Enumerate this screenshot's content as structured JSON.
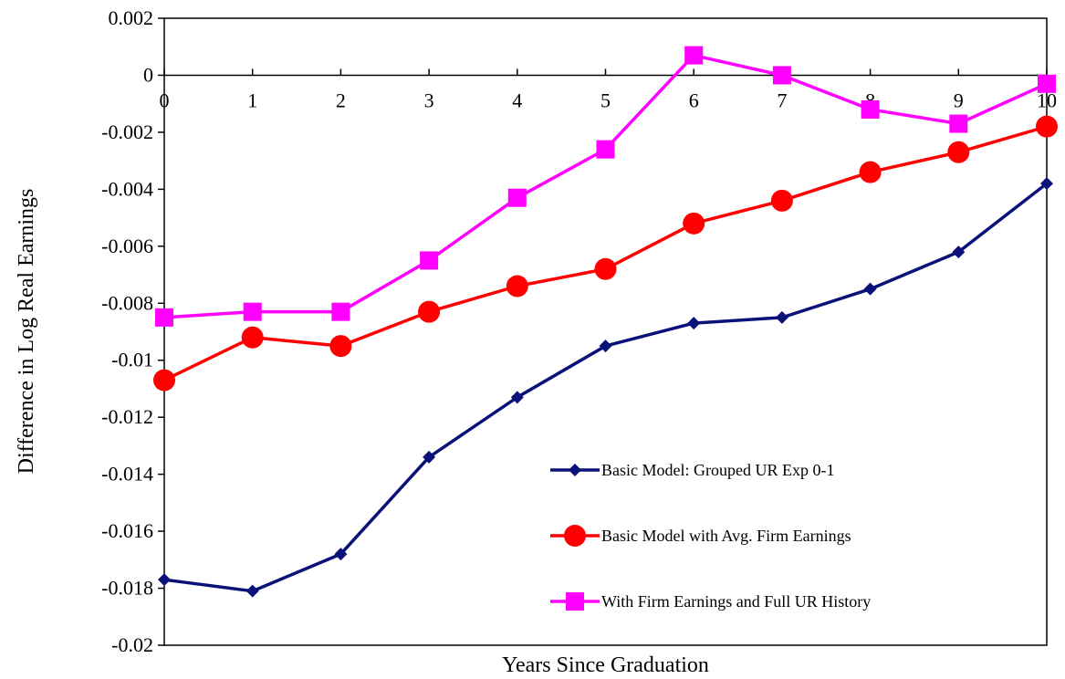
{
  "chart_data": {
    "type": "line",
    "title": "",
    "xlabel": "Years Since Graduation",
    "ylabel": "Difference in Log Real Earnings",
    "xlim": [
      0,
      10
    ],
    "ylim": [
      -0.02,
      0.002
    ],
    "x": [
      0,
      1,
      2,
      3,
      4,
      5,
      6,
      7,
      8,
      9,
      10
    ],
    "x_tick_labels": [
      "0",
      "1",
      "2",
      "3",
      "4",
      "5",
      "6",
      "7",
      "8",
      "9",
      "10"
    ],
    "y_ticks": [
      0.002,
      0,
      -0.002,
      -0.004,
      -0.006,
      -0.008,
      -0.01,
      -0.012,
      -0.014,
      -0.016,
      -0.018,
      -0.02
    ],
    "y_tick_labels": [
      "0.002",
      "0",
      "-0.002",
      "-0.004",
      "-0.006",
      "-0.008",
      "-0.01",
      "-0.012",
      "-0.014",
      "-0.016",
      "-0.018",
      "-0.02"
    ],
    "grid": false,
    "legend_position": "lower-right",
    "series": [
      {
        "name": "Basic Model: Grouped UR Exp 0-1",
        "color": "#0a127a",
        "marker": "diamond",
        "values": [
          -0.0177,
          -0.0181,
          -0.0168,
          -0.0134,
          -0.0113,
          -0.0095,
          -0.0087,
          -0.0085,
          -0.0075,
          -0.0062,
          -0.0038
        ]
      },
      {
        "name": "Basic Model with Avg. Firm Earnings",
        "color": "#ff0000",
        "marker": "circle",
        "values": [
          -0.0107,
          -0.0092,
          -0.0095,
          -0.0083,
          -0.0074,
          -0.0068,
          -0.0052,
          -0.0044,
          -0.0034,
          -0.0027,
          -0.0018
        ]
      },
      {
        "name": "With Firm Earnings and Full UR History",
        "color": "#ff00ff",
        "marker": "square",
        "values": [
          -0.0085,
          -0.0083,
          -0.0083,
          -0.0065,
          -0.0043,
          -0.0026,
          0.0007,
          0.0,
          -0.0012,
          -0.0017,
          -0.0003
        ]
      }
    ]
  }
}
